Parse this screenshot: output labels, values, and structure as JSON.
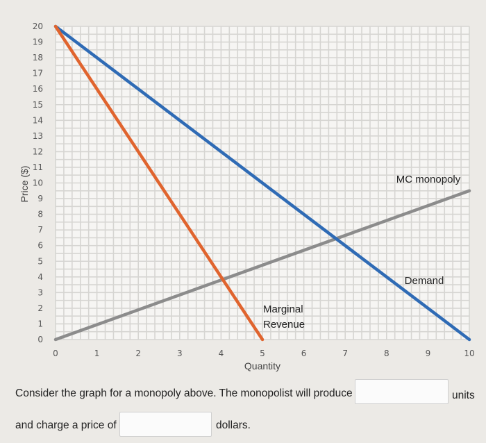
{
  "chart_data": {
    "type": "line",
    "xlabel": "Quantity",
    "ylabel": "Price ($)",
    "xlim": [
      0,
      10
    ],
    "ylim": [
      0,
      20
    ],
    "x_ticks": [
      "0",
      "1",
      "2",
      "3",
      "4",
      "5",
      "6",
      "7",
      "8",
      "9",
      "10"
    ],
    "y_ticks": [
      "0",
      "1",
      "2",
      "3",
      "4",
      "5",
      "6",
      "7",
      "8",
      "9",
      "10",
      "11",
      "12",
      "13",
      "14",
      "15",
      "16",
      "17",
      "18",
      "19",
      "20"
    ],
    "grid": true,
    "series": [
      {
        "name": "Demand",
        "color": "#2f6bb5",
        "points": [
          [
            0,
            20
          ],
          [
            10,
            0
          ]
        ]
      },
      {
        "name": "Marginal Revenue",
        "label_lines": [
          "Marginal",
          "Revenue"
        ],
        "color": "#e0642e",
        "points": [
          [
            0,
            20
          ],
          [
            5,
            0
          ]
        ]
      },
      {
        "name": "MC monopoly",
        "color": "#8c8c8c",
        "points": [
          [
            0,
            0
          ],
          [
            10,
            9.5
          ]
        ]
      }
    ]
  },
  "question": {
    "text_part1": "Consider the graph for a monopoly above. The monopolist will produce",
    "units_label": "units",
    "text_part2": "and charge a price of",
    "dollars_label": "dollars.",
    "quantity_answer": "",
    "price_answer": ""
  }
}
